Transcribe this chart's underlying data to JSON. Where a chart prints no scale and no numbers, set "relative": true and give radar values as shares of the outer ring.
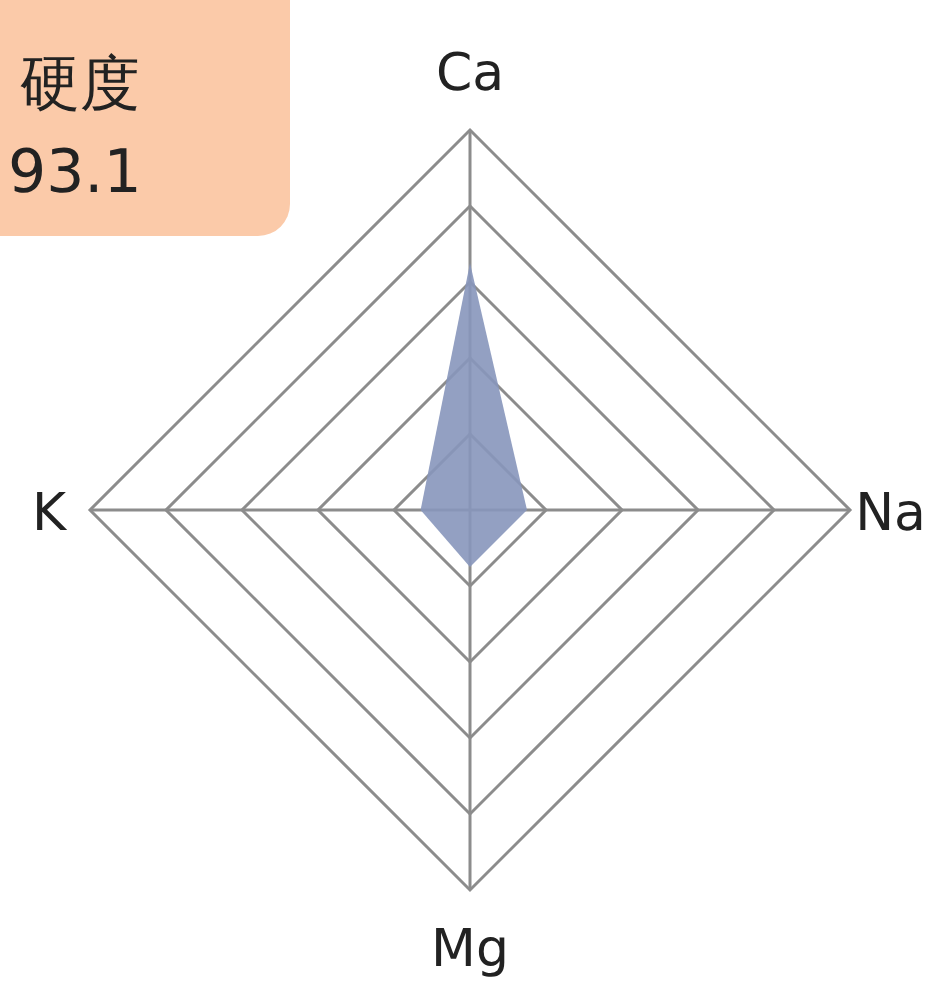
{
  "chart_data": {
    "type": "radar",
    "title": "硬度",
    "subtitle": "93.1",
    "relative": true,
    "grid": true,
    "categories": [
      "Ca",
      "Na",
      "Mg",
      "K"
    ],
    "series": [
      {
        "color": "#8796bb",
        "values": [
          0.65,
          0.15,
          0.15,
          0.13
        ]
      }
    ]
  }
}
